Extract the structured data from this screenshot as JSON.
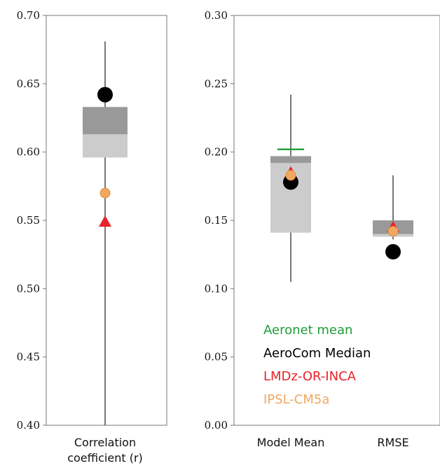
{
  "chart_data": [
    {
      "type": "boxplot",
      "ylim": [
        0.4,
        0.7
      ],
      "yticks": [
        "0.40",
        "0.45",
        "0.50",
        "0.55",
        "0.60",
        "0.65",
        "0.70"
      ],
      "categories": [
        "Correlation coefficient (r)"
      ],
      "category_lines": [
        [
          "Correlation",
          "coefficient (r)"
        ]
      ],
      "boxes": [
        {
          "whisker_low": 0.4,
          "q1": 0.596,
          "median": 0.613,
          "q3": 0.633,
          "whisker_high": 0.681
        }
      ],
      "markers": {
        "AeroCom Median": [
          0.642
        ],
        "LMDz-OR-INCA": [
          0.549
        ],
        "IPSL-CM5a": [
          0.57
        ]
      }
    },
    {
      "type": "boxplot",
      "ylim": [
        0.0,
        0.3
      ],
      "yticks": [
        "0.00",
        "0.05",
        "0.10",
        "0.15",
        "0.20",
        "0.25",
        "0.30"
      ],
      "categories": [
        "Model Mean",
        "RMSE"
      ],
      "category_lines": [
        [
          "Model Mean"
        ],
        [
          "RMSE"
        ]
      ],
      "boxes": [
        {
          "whisker_low": 0.105,
          "q1": 0.141,
          "median": 0.192,
          "q3": 0.197,
          "whisker_high": 0.242
        },
        {
          "whisker_low": 0.136,
          "q1": 0.138,
          "median": 0.14,
          "q3": 0.15,
          "whisker_high": 0.183
        }
      ],
      "markers": {
        "Aeronet mean": [
          0.202,
          null
        ],
        "AeroCom Median": [
          0.178,
          0.127
        ],
        "LMDz-OR-INCA": [
          0.185,
          0.145
        ],
        "IPSL-CM5a": [
          0.183,
          0.142
        ]
      },
      "legend": [
        {
          "label": "Aeronet mean",
          "color": "#1f9e3a"
        },
        {
          "label": "AeroCom Median",
          "color": "#000000"
        },
        {
          "label": "LMDz-OR-INCA",
          "color": "#e8232a"
        },
        {
          "label": "IPSL-CM5a",
          "color": "#f0a860"
        }
      ]
    }
  ],
  "colors": {
    "box_lower": "#cccccc",
    "box_upper": "#999999",
    "whisker": "#555555",
    "aeronet": "#1f9e3a",
    "aerocom": "#000000",
    "lmdz": "#e8232a",
    "ipsl": "#f0a860"
  }
}
